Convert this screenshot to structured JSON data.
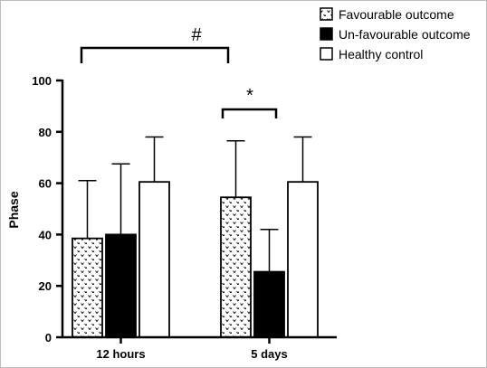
{
  "chart_data": {
    "type": "bar",
    "title": "",
    "xlabel": "",
    "ylabel": "Phase",
    "ylim": [
      0,
      100
    ],
    "yticks": [
      0,
      20,
      40,
      60,
      80,
      100
    ],
    "categories": [
      "12 hours",
      "5 days"
    ],
    "series": [
      {
        "name": "Favourable outcome",
        "values": [
          38.5,
          54.5
        ],
        "error": [
          22.5,
          22
        ],
        "pattern": "dotted",
        "color": "#ffffff"
      },
      {
        "name": "Un-favourable outcome",
        "values": [
          40,
          25.5
        ],
        "error": [
          27.5,
          16.5
        ],
        "pattern": "solid",
        "color": "#000000"
      },
      {
        "name": "Healthy control",
        "values": [
          60.5,
          60.5
        ],
        "error": [
          17.5,
          17.5
        ],
        "pattern": "none",
        "color": "#ffffff"
      }
    ],
    "legend_position": "top-right",
    "annotations": [
      {
        "symbol": "#",
        "between": "12 hours vs 5 days (Favourable outcome)"
      },
      {
        "symbol": "*",
        "between": "Favourable vs Un-favourable outcome at 5 days"
      }
    ]
  }
}
